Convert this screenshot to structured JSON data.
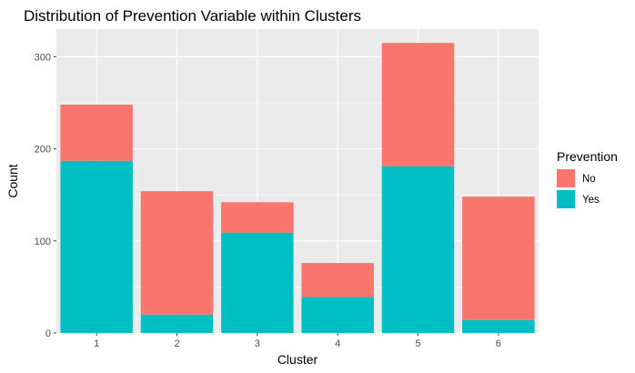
{
  "chart_data": {
    "type": "bar",
    "stacked": true,
    "title": "Distribution of Prevention Variable within Clusters",
    "xlabel": "Cluster",
    "ylabel": "Count",
    "categories": [
      "1",
      "2",
      "3",
      "4",
      "5",
      "6"
    ],
    "series": [
      {
        "name": "Yes",
        "color": "#00BFC4",
        "values": [
          187,
          20,
          109,
          39,
          181,
          14
        ]
      },
      {
        "name": "No",
        "color": "#F8766D",
        "values": [
          61,
          134,
          33,
          37,
          134,
          134
        ]
      }
    ],
    "ylim": [
      0,
      330
    ],
    "yticks": [
      0,
      100,
      200,
      300
    ],
    "ytick_labels": [
      "0",
      "100",
      "200",
      "300"
    ],
    "grid": true,
    "legend": {
      "title": "Prevention",
      "position": "right",
      "entries": [
        {
          "label": "No",
          "color": "#F8766D"
        },
        {
          "label": "Yes",
          "color": "#00BFC4"
        }
      ]
    },
    "panel_background": "#EBEBEB",
    "grid_color": "#FFFFFF"
  }
}
